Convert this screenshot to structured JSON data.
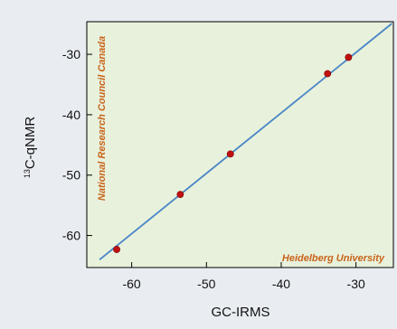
{
  "chart_data": {
    "type": "scatter",
    "xlabel": "GC-IRMS",
    "ylabel_sup": "13",
    "ylabel_main": "C-qNMR",
    "xlim": [
      -66,
      -25
    ],
    "ylim": [
      -65.3,
      -24.6
    ],
    "xticks": [
      -60,
      -50,
      -40,
      -30
    ],
    "yticks": [
      -60,
      -50,
      -40,
      -30
    ],
    "points": [
      {
        "x": -62.0,
        "y": -62.3
      },
      {
        "x": -53.5,
        "y": -53.2
      },
      {
        "x": -46.8,
        "y": -46.5
      },
      {
        "x": -33.8,
        "y": -33.2
      },
      {
        "x": -31.0,
        "y": -30.5
      }
    ],
    "fit_line": [
      {
        "x": -64.3,
        "y": -64.0
      },
      {
        "x": -25.2,
        "y": -24.9
      }
    ],
    "annotations": {
      "left_vertical": "National Research Council Canada",
      "bottom_right": "Heidelberg University"
    },
    "colors": {
      "plot_background": "#e8f1dc",
      "figure_background": "#e9edf2",
      "line": "#4a86c6",
      "points": "#c01010",
      "annotation_text": "#c8641a"
    }
  }
}
